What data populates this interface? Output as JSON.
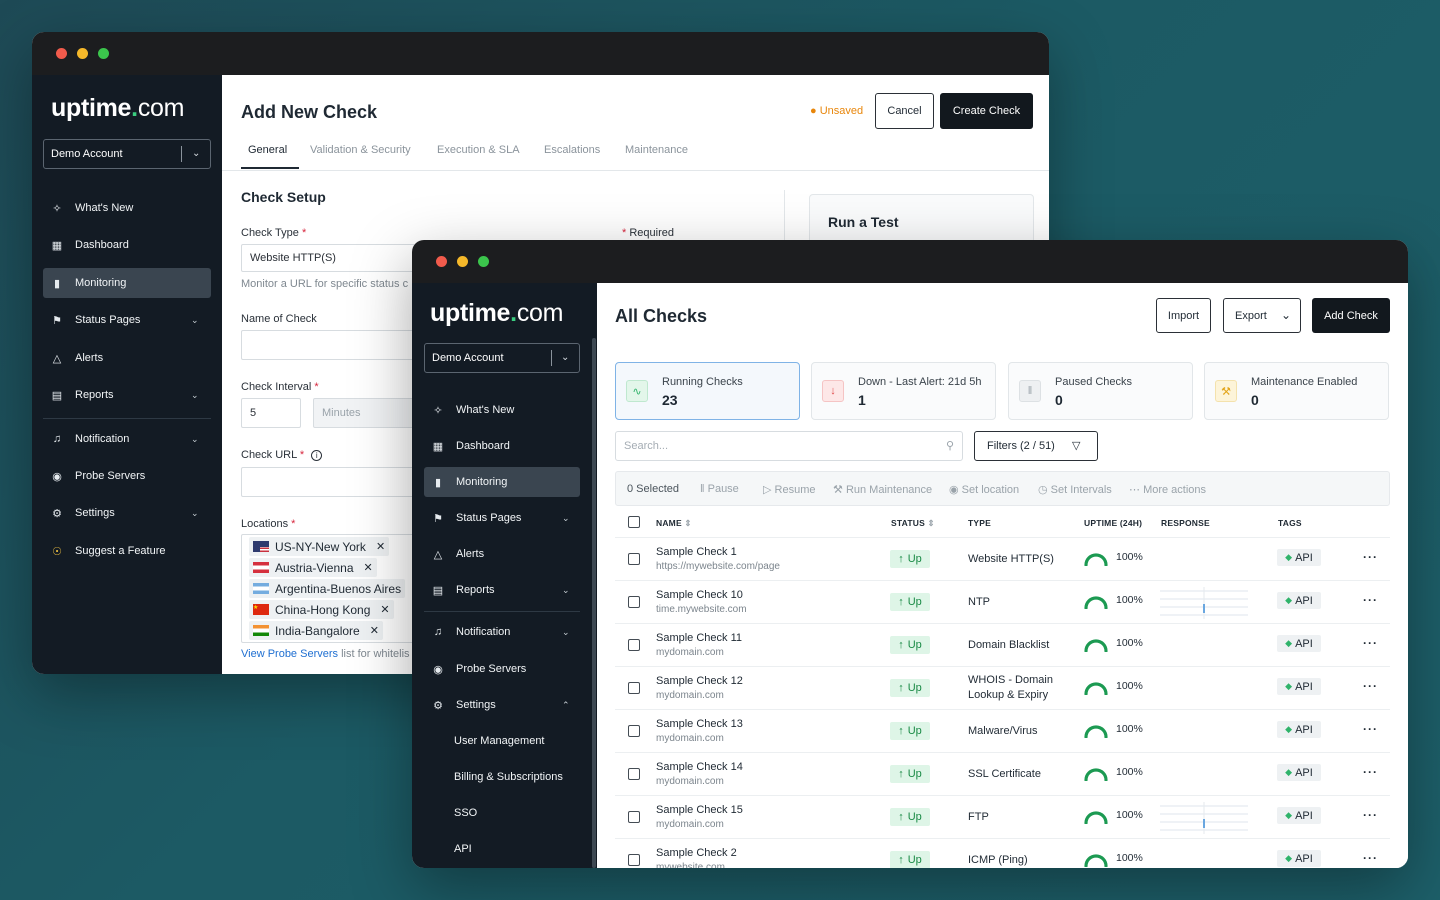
{
  "back_window": {
    "logo": {
      "brand": "uptime",
      "dot": ".",
      "tld": "com"
    },
    "account": "Demo Account",
    "nav": [
      {
        "label": "What's New",
        "icon": "sparkle-icon"
      },
      {
        "label": "Dashboard",
        "icon": "dashboard-icon"
      },
      {
        "label": "Monitoring",
        "icon": "chart-icon",
        "active": true
      },
      {
        "label": "Status Pages",
        "icon": "flag-icon",
        "expandable": true
      },
      {
        "label": "Alerts",
        "icon": "warning-icon"
      },
      {
        "label": "Reports",
        "icon": "report-icon",
        "expandable": true
      },
      {
        "label": "Notification",
        "icon": "bell-icon",
        "expandable": true
      },
      {
        "label": "Probe Servers",
        "icon": "pin-icon"
      },
      {
        "label": "Settings",
        "icon": "gear-icon",
        "expandable": true
      },
      {
        "label": "Suggest a Feature",
        "icon": "bulb-icon"
      }
    ],
    "title": "Add New Check",
    "unsaved": "Unsaved",
    "cancel": "Cancel",
    "create": "Create Check",
    "tabs": [
      "General",
      "Validation & Security",
      "Execution & SLA",
      "Escalations",
      "Maintenance"
    ],
    "section": "Check Setup",
    "required_note": "Required",
    "check_type_label": "Check Type",
    "check_type_value": "Website HTTP(S)",
    "check_type_hint": "Monitor a URL for specific status c",
    "name_label": "Name of Check",
    "interval_label": "Check Interval",
    "interval_value": "5",
    "interval_unit": "Minutes",
    "url_label": "Check URL",
    "locations_label": "Locations",
    "locations": [
      "US-NY-New York",
      "Austria-Vienna",
      "Argentina-Buenos Aires",
      "China-Hong Kong",
      "India-Bangalore"
    ],
    "probe_link": "View Probe Servers",
    "probe_suffix": "list for whitelis",
    "run_test": "Run a Test"
  },
  "front_window": {
    "account": "Demo Account",
    "nav": [
      {
        "label": "What's New"
      },
      {
        "label": "Dashboard"
      },
      {
        "label": "Monitoring"
      },
      {
        "label": "Status Pages"
      },
      {
        "label": "Alerts"
      },
      {
        "label": "Reports"
      },
      {
        "label": "Notification"
      },
      {
        "label": "Probe Servers"
      },
      {
        "label": "Settings"
      },
      {
        "label": "User Management"
      },
      {
        "label": "Billing & Subscriptions"
      },
      {
        "label": "SSO"
      },
      {
        "label": "API"
      }
    ],
    "title": "All Checks",
    "import": "Import",
    "export": "Export",
    "add": "Add Check",
    "cards": [
      {
        "title": "Running Checks",
        "value": "23"
      },
      {
        "title": "Down - Last Alert: 21d 5h",
        "value": "1"
      },
      {
        "title": "Paused Checks",
        "value": "0"
      },
      {
        "title": "Maintenance Enabled",
        "value": "0"
      }
    ],
    "search_placeholder": "Search...",
    "filters": "Filters (2 / 51)",
    "toolbar": {
      "selected": "0 Selected",
      "pause": "Pause",
      "resume": "Resume",
      "run_maintenance": "Run Maintenance",
      "set_location": "Set location",
      "set_intervals": "Set Intervals",
      "more": "More actions"
    },
    "columns": {
      "name": "NAME",
      "status": "STATUS",
      "type": "TYPE",
      "uptime": "UPTIME (24H)",
      "response": "RESPONSE",
      "tags": "TAGS"
    },
    "rows": [
      {
        "name": "Sample Check 1",
        "sub": "https://mywebsite.com/page",
        "status": "Up",
        "type": "Website HTTP(S)",
        "uptime": "100%",
        "tag": "API"
      },
      {
        "name": "Sample Check 10",
        "sub": "time.mywebsite.com",
        "status": "Up",
        "type": "NTP",
        "uptime": "100%",
        "tag": "API"
      },
      {
        "name": "Sample Check 11",
        "sub": "mydomain.com",
        "status": "Up",
        "type": "Domain Blacklist",
        "uptime": "100%",
        "tag": "API"
      },
      {
        "name": "Sample Check 12",
        "sub": "mydomain.com",
        "status": "Up",
        "type": "WHOIS - Domain Lookup & Expiry",
        "uptime": "100%",
        "tag": "API"
      },
      {
        "name": "Sample Check 13",
        "sub": "mydomain.com",
        "status": "Up",
        "type": "Malware/Virus",
        "uptime": "100%",
        "tag": "API"
      },
      {
        "name": "Sample Check 14",
        "sub": "mydomain.com",
        "status": "Up",
        "type": "SSL Certificate",
        "uptime": "100%",
        "tag": "API"
      },
      {
        "name": "Sample Check 15",
        "sub": "mydomain.com",
        "status": "Up",
        "type": "FTP",
        "uptime": "100%",
        "tag": "API"
      },
      {
        "name": "Sample Check 2",
        "sub": "mywebsite.com",
        "status": "Up",
        "type": "ICMP (Ping)",
        "uptime": "100%",
        "tag": "API"
      }
    ]
  }
}
